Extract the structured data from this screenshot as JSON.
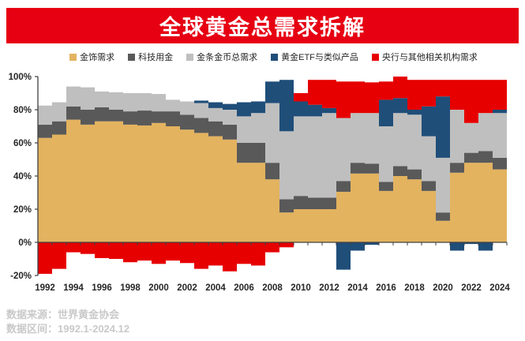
{
  "header": {
    "title": "全球黄金总需求拆解",
    "banner_color": "#e60012",
    "title_text_color": "#ffffff"
  },
  "footer": {
    "source": "数据来源：世界黄金协会",
    "range": "数据区间：1992.1-2024.12",
    "text_color": "#c9c9c9"
  },
  "chart_data": {
    "type": "bar",
    "stacked": true,
    "unit": "% of total gold demand",
    "x": [
      1992,
      1993,
      1994,
      1995,
      1996,
      1997,
      1998,
      1999,
      2000,
      2001,
      2002,
      2003,
      2004,
      2005,
      2006,
      2007,
      2008,
      2009,
      2010,
      2011,
      2012,
      2013,
      2014,
      2015,
      2016,
      2017,
      2018,
      2019,
      2020,
      2021,
      2022,
      2023,
      2024
    ],
    "series": [
      {
        "name": "金饰需求",
        "color": "#e3b35f",
        "values": [
          63,
          65,
          74,
          71,
          73,
          73,
          71,
          70.5,
          72,
          70,
          68,
          66,
          64,
          62,
          48,
          48,
          38,
          18,
          20,
          20,
          20,
          30.5,
          41.5,
          41.5,
          31,
          40,
          38,
          31,
          13,
          42,
          48,
          48,
          44
        ]
      },
      {
        "name": "科技用金",
        "color": "#595959",
        "values": [
          8,
          8,
          8,
          9,
          8.5,
          7,
          8,
          9,
          7,
          9,
          9,
          9,
          9,
          9,
          12,
          12,
          10,
          8,
          8,
          7,
          7,
          6.5,
          6.5,
          6,
          5.5,
          6,
          6,
          6,
          5,
          6,
          6,
          7,
          7
        ]
      },
      {
        "name": "金条金币总需求",
        "color": "#bfbfbf",
        "values": [
          11.5,
          11.5,
          12,
          13.5,
          9.5,
          10.5,
          11,
          10.5,
          10.5,
          7,
          8,
          9,
          8,
          9,
          16,
          18,
          36,
          41,
          48,
          49,
          51,
          38,
          30,
          30.5,
          33.5,
          32,
          33,
          27,
          33,
          32,
          18,
          23,
          27
        ]
      },
      {
        "name": "黄金ETF与类似产品",
        "color": "#1f4e79",
        "values": [
          0,
          0,
          0,
          0,
          0,
          0,
          0,
          0,
          0,
          0,
          0,
          1.5,
          3.5,
          3.5,
          8.5,
          7,
          13,
          31,
          9,
          7,
          3,
          -16.5,
          -5,
          -1.5,
          16,
          9,
          3,
          18,
          37,
          -5,
          -1,
          -5,
          2
        ]
      },
      {
        "name": "央行与其他相关机构需求",
        "color": "#e60000",
        "values": [
          -19,
          -16,
          -6,
          -7,
          -9.5,
          -10,
          -12,
          -11,
          -13,
          -11,
          -12.5,
          -16,
          -14,
          -17.5,
          -13,
          -14,
          -6,
          -3,
          5,
          15,
          17,
          22,
          19,
          18.5,
          11,
          13,
          18,
          16,
          10,
          18,
          26,
          20,
          18
        ]
      }
    ],
    "ylim": [
      -20,
      100
    ],
    "y_ticks": [
      "100%",
      "80%",
      "60%",
      "40%",
      "20%",
      "0%",
      "-20%"
    ],
    "x_tick_labels": [
      "1992",
      "1994",
      "1996",
      "1998",
      "2000",
      "2002",
      "2004",
      "2006",
      "2008",
      "2010",
      "2012",
      "2014",
      "2016",
      "2018",
      "2020",
      "2022",
      "2024"
    ],
    "legend_position": "top",
    "grid": false,
    "axis_color": "#404040",
    "tick_label_color": "#262626"
  }
}
